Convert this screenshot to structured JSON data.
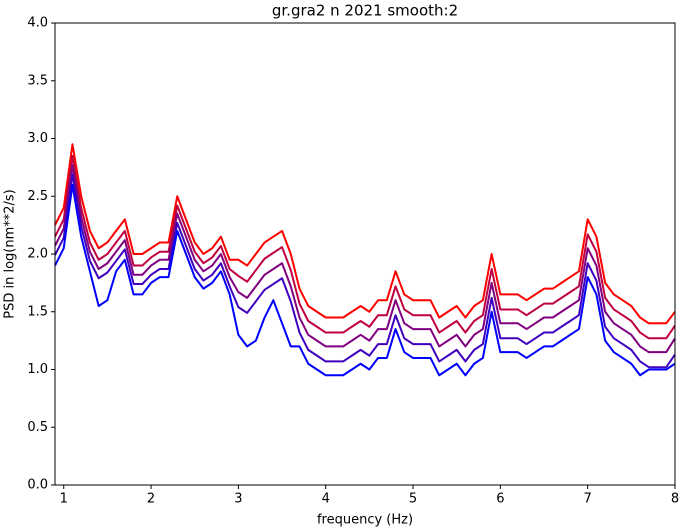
{
  "chart_data": {
    "type": "line",
    "title": "gr.gra2 n 2021 smooth:2",
    "x_label": "frequency (Hz)",
    "y_label": "PSD in log(nm**2/s)",
    "xlim": [
      0.9,
      8
    ],
    "ylim": [
      0,
      4
    ],
    "xticks": [
      1,
      2,
      3,
      4,
      5,
      6,
      7,
      8
    ],
    "yticks": [
      {
        "value": 0,
        "label": "0.0"
      },
      0.5,
      {
        "value": 1,
        "label": "1.0"
      },
      1.5,
      {
        "value": 2,
        "label": "2.0"
      },
      2.5,
      {
        "value": 3,
        "label": "3.0"
      },
      3.5,
      {
        "value": 4,
        "label": "4.0"
      }
    ],
    "grid": false,
    "x": [
      0.9,
      1.0,
      1.1,
      1.2,
      1.3,
      1.4,
      1.5,
      1.6,
      1.7,
      1.8,
      1.9,
      2.0,
      2.1,
      2.2,
      2.3,
      2.4,
      2.5,
      2.6,
      2.7,
      2.8,
      2.9,
      3.0,
      3.1,
      3.2,
      3.3,
      3.4,
      3.5,
      3.6,
      3.7,
      3.8,
      3.9,
      4.0,
      4.1,
      4.2,
      4.3,
      4.4,
      4.5,
      4.6,
      4.7,
      4.8,
      4.9,
      5.0,
      5.1,
      5.2,
      5.3,
      5.4,
      5.5,
      5.6,
      5.7,
      5.8,
      5.9,
      6.0,
      6.1,
      6.2,
      6.3,
      6.4,
      6.5,
      6.6,
      6.7,
      6.8,
      6.9,
      7.0,
      7.1,
      7.2,
      7.3,
      7.4,
      7.5,
      7.6,
      7.7,
      7.8,
      7.9,
      8.0
    ],
    "series": [
      {
        "color": "#ff0000",
        "values": [
          2.25,
          2.4,
          2.95,
          2.5,
          2.2,
          2.05,
          2.1,
          2.2,
          2.3,
          2.0,
          2.0,
          2.05,
          2.1,
          2.1,
          2.5,
          2.3,
          2.1,
          2.0,
          2.05,
          2.15,
          1.95,
          1.95,
          1.9,
          2.0,
          2.1,
          2.15,
          2.2,
          2.0,
          1.7,
          1.55,
          1.5,
          1.45,
          1.45,
          1.45,
          1.5,
          1.55,
          1.5,
          1.6,
          1.6,
          1.85,
          1.65,
          1.6,
          1.6,
          1.6,
          1.45,
          1.5,
          1.55,
          1.45,
          1.55,
          1.6,
          2.0,
          1.65,
          1.65,
          1.65,
          1.6,
          1.65,
          1.7,
          1.7,
          1.75,
          1.8,
          1.85,
          2.3,
          2.15,
          1.75,
          1.65,
          1.6,
          1.55,
          1.45,
          1.4,
          1.4,
          1.4,
          1.5
        ]
      },
      {
        "color": "#bf0040",
        "values": [
          2.15,
          2.3,
          2.85,
          2.4,
          2.1,
          1.95,
          2.0,
          2.1,
          2.2,
          1.9,
          1.9,
          1.97,
          2.02,
          2.02,
          2.42,
          2.22,
          2.02,
          1.92,
          1.97,
          2.07,
          1.87,
          1.81,
          1.76,
          1.86,
          1.96,
          2.01,
          2.06,
          1.86,
          1.57,
          1.42,
          1.37,
          1.32,
          1.32,
          1.32,
          1.37,
          1.42,
          1.37,
          1.47,
          1.47,
          1.72,
          1.52,
          1.47,
          1.47,
          1.47,
          1.32,
          1.37,
          1.42,
          1.32,
          1.42,
          1.47,
          1.87,
          1.52,
          1.52,
          1.52,
          1.47,
          1.52,
          1.57,
          1.57,
          1.62,
          1.67,
          1.72,
          2.17,
          2.02,
          1.62,
          1.52,
          1.47,
          1.42,
          1.32,
          1.27,
          1.27,
          1.27,
          1.38
        ]
      },
      {
        "color": "#800080",
        "values": [
          2.07,
          2.22,
          2.77,
          2.32,
          2.02,
          1.87,
          1.92,
          2.02,
          2.12,
          1.82,
          1.82,
          1.9,
          1.95,
          1.95,
          2.35,
          2.15,
          1.95,
          1.85,
          1.9,
          2.0,
          1.8,
          1.67,
          1.62,
          1.72,
          1.82,
          1.87,
          1.92,
          1.72,
          1.45,
          1.3,
          1.25,
          1.2,
          1.2,
          1.2,
          1.25,
          1.3,
          1.25,
          1.35,
          1.35,
          1.6,
          1.4,
          1.35,
          1.35,
          1.35,
          1.2,
          1.25,
          1.3,
          1.2,
          1.3,
          1.35,
          1.75,
          1.4,
          1.4,
          1.4,
          1.35,
          1.4,
          1.45,
          1.45,
          1.5,
          1.55,
          1.6,
          2.05,
          1.9,
          1.5,
          1.4,
          1.35,
          1.3,
          1.2,
          1.15,
          1.15,
          1.15,
          1.27
        ]
      },
      {
        "color": "#4000bf",
        "values": [
          1.99,
          2.14,
          2.69,
          2.24,
          1.94,
          1.79,
          1.84,
          1.94,
          2.04,
          1.74,
          1.74,
          1.82,
          1.87,
          1.87,
          2.27,
          2.07,
          1.87,
          1.77,
          1.82,
          1.92,
          1.72,
          1.54,
          1.49,
          1.59,
          1.69,
          1.74,
          1.79,
          1.59,
          1.32,
          1.17,
          1.12,
          1.07,
          1.07,
          1.07,
          1.12,
          1.17,
          1.12,
          1.22,
          1.22,
          1.47,
          1.27,
          1.22,
          1.22,
          1.22,
          1.07,
          1.12,
          1.17,
          1.07,
          1.17,
          1.22,
          1.62,
          1.27,
          1.27,
          1.27,
          1.22,
          1.27,
          1.32,
          1.32,
          1.37,
          1.42,
          1.47,
          1.92,
          1.77,
          1.37,
          1.27,
          1.22,
          1.17,
          1.07,
          1.02,
          1.02,
          1.02,
          1.13
        ]
      },
      {
        "color": "#0000ff",
        "values": [
          1.9,
          2.05,
          2.6,
          2.15,
          1.85,
          1.55,
          1.6,
          1.85,
          1.95,
          1.65,
          1.65,
          1.75,
          1.8,
          1.8,
          2.2,
          2.0,
          1.8,
          1.7,
          1.75,
          1.85,
          1.65,
          1.3,
          1.2,
          1.25,
          1.45,
          1.6,
          1.4,
          1.2,
          1.2,
          1.05,
          1.0,
          0.95,
          0.95,
          0.95,
          1.0,
          1.05,
          1.0,
          1.1,
          1.1,
          1.35,
          1.15,
          1.1,
          1.1,
          1.1,
          0.95,
          1.0,
          1.05,
          0.95,
          1.05,
          1.1,
          1.5,
          1.15,
          1.15,
          1.15,
          1.1,
          1.15,
          1.2,
          1.2,
          1.25,
          1.3,
          1.35,
          1.8,
          1.65,
          1.25,
          1.15,
          1.1,
          1.05,
          0.95,
          1.0,
          1.0,
          1.0,
          1.05
        ]
      }
    ]
  }
}
